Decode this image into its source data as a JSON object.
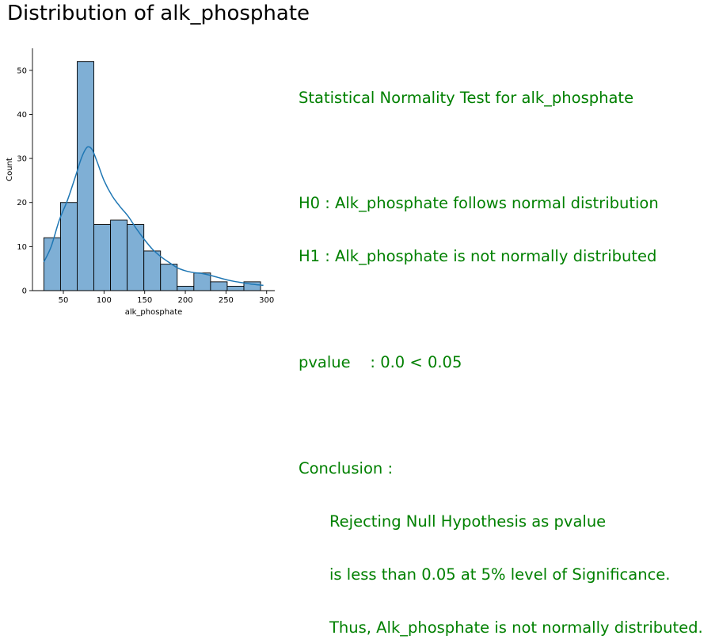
{
  "figure": {
    "title": "Distribution of alk_phosphate"
  },
  "chart_data": {
    "type": "bar",
    "variant": "histogram-with-kde",
    "xlabel": "alk_phosphate",
    "ylabel": "Count",
    "xlim": [
      12,
      310
    ],
    "ylim": [
      0,
      55
    ],
    "xticks": [
      50,
      100,
      150,
      200,
      250,
      300
    ],
    "yticks": [
      0,
      10,
      20,
      30,
      40,
      50
    ],
    "grid": false,
    "bar_color": "#7fafd5",
    "kde_color": "#1f77b4",
    "bins": [
      {
        "x0": 26,
        "x1": 46.5,
        "count": 12
      },
      {
        "x0": 46.5,
        "x1": 67,
        "count": 20
      },
      {
        "x0": 67,
        "x1": 87.5,
        "count": 52
      },
      {
        "x0": 87.5,
        "x1": 108,
        "count": 15
      },
      {
        "x0": 108,
        "x1": 128.5,
        "count": 16
      },
      {
        "x0": 128.5,
        "x1": 149,
        "count": 15
      },
      {
        "x0": 149,
        "x1": 169.5,
        "count": 9
      },
      {
        "x0": 169.5,
        "x1": 190,
        "count": 6
      },
      {
        "x0": 190,
        "x1": 210.5,
        "count": 1
      },
      {
        "x0": 210.5,
        "x1": 231,
        "count": 4
      },
      {
        "x0": 231,
        "x1": 251.5,
        "count": 2
      },
      {
        "x0": 251.5,
        "x1": 272,
        "count": 1
      },
      {
        "x0": 272,
        "x1": 292.5,
        "count": 2
      }
    ],
    "kde": {
      "x": [
        26,
        35,
        45,
        55,
        65,
        72,
        78,
        82,
        86,
        92,
        100,
        110,
        120,
        130,
        140,
        150,
        160,
        170,
        180,
        190,
        200,
        210,
        220,
        230,
        240,
        250,
        260,
        270,
        280,
        290,
        296
      ],
      "y": [
        6.5,
        10,
        16,
        20.5,
        26,
        30,
        32.3,
        32.6,
        31.8,
        29,
        25,
        21.5,
        19,
        16.8,
        14,
        11.5,
        9.3,
        7.7,
        6.4,
        5.2,
        4.5,
        4.1,
        3.9,
        3.5,
        3.0,
        2.5,
        2.1,
        1.8,
        1.5,
        1.3,
        1.2
      ]
    }
  },
  "test": {
    "title": "Statistical Normality Test for alk_phosphate",
    "h0": "H0 : Alk_phosphate follows normal distribution",
    "h1": "H1 : Alk_phosphate is not normally distributed",
    "pvalue": "pvalue    : 0.0 < 0.05",
    "conclusion_label": "Conclusion :",
    "conclusion_line1": "Rejecting Null Hypothesis as pvalue",
    "conclusion_line2": "is less than 0.05 at 5% level of Significance.",
    "conclusion_line3": "Thus, Alk_phosphate is not normally distributed.",
    "text_color": "#008000"
  }
}
